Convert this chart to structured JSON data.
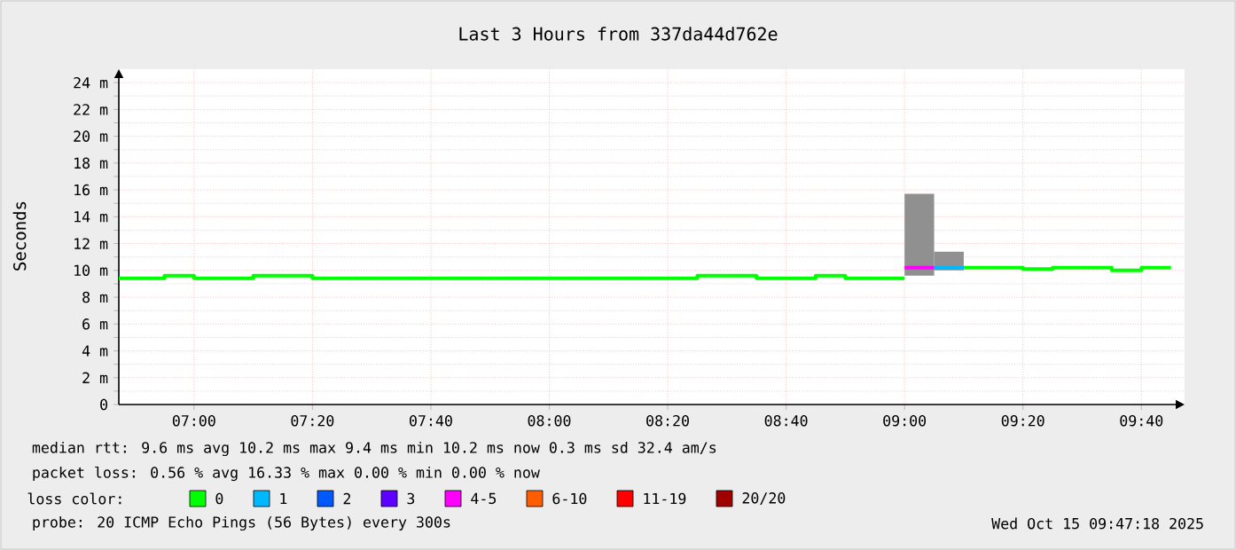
{
  "chart_data": {
    "type": "step",
    "title": "Last 3 Hours from 337da44d762e",
    "ylabel": "Seconds",
    "xlim": [
      6.7883,
      9.7883
    ],
    "ylim": [
      0,
      25
    ],
    "xticks": [
      {
        "value": 7.0,
        "label": "07:00"
      },
      {
        "value": 7.3333,
        "label": "07:20"
      },
      {
        "value": 7.6667,
        "label": "07:40"
      },
      {
        "value": 8.0,
        "label": "08:00"
      },
      {
        "value": 8.3333,
        "label": "08:20"
      },
      {
        "value": 8.6667,
        "label": "08:40"
      },
      {
        "value": 9.0,
        "label": "09:00"
      },
      {
        "value": 9.3333,
        "label": "09:20"
      },
      {
        "value": 9.6667,
        "label": "09:40"
      }
    ],
    "yticks": [
      0,
      {
        "value": 2,
        "label": "2 m"
      },
      {
        "value": 4,
        "label": "4 m"
      },
      {
        "value": 6,
        "label": "6 m"
      },
      {
        "value": 8,
        "label": "8 m"
      },
      {
        "value": 10,
        "label": "10 m"
      },
      {
        "value": 12,
        "label": "12 m"
      },
      {
        "value": 14,
        "label": "14 m"
      },
      {
        "value": 16,
        "label": "16 m"
      },
      {
        "value": 18,
        "label": "18 m"
      },
      {
        "value": 20,
        "label": "20 m"
      },
      {
        "value": 22,
        "label": "22 m"
      },
      {
        "value": 24,
        "label": "24 m"
      }
    ],
    "grid": true,
    "legend": "bottom",
    "legend_title": "loss color:",
    "series": [
      {
        "type": "bar",
        "color": "#909090",
        "x": [
          9.0417,
          9.125
        ],
        "base": [
          9.6,
          10.0
        ],
        "values": [
          6.1,
          1.4
        ]
      },
      {
        "name": "0",
        "color": "#00ff00",
        "x": [
          6.7883,
          6.9167,
          7.0,
          7.1667,
          7.3333,
          8.4167,
          8.5833,
          8.75,
          8.8333,
          9.0,
          9.0833,
          9.1667,
          9.3333,
          9.4167,
          9.5833,
          9.6667,
          9.75
        ],
        "values": [
          9.4,
          9.6,
          9.4,
          9.6,
          9.4,
          9.6,
          9.4,
          9.6,
          9.4,
          9.4,
          null,
          10.2,
          10.1,
          10.2,
          10.0,
          10.2,
          10.2
        ]
      },
      {
        "name": "1",
        "color": "#00b8ff",
        "x": [
          9.0833,
          9.1667
        ],
        "values": [
          10.2,
          10.2
        ]
      },
      {
        "name": "2",
        "color": "#0059ff"
      },
      {
        "name": "3",
        "color": "#5e00ff"
      },
      {
        "name": "4-5",
        "color": "#ff00ff",
        "x": [
          9.0,
          9.0833
        ],
        "values": [
          10.2,
          10.2
        ]
      },
      {
        "name": "6-10",
        "color": "#ff5e00"
      },
      {
        "name": "11-19",
        "color": "#ff0000"
      },
      {
        "name": "20/20",
        "color": "#a10000"
      }
    ],
    "annotations": [
      "median rtt:  9.6 ms avg  10.2 ms max  9.4 ms min  10.2 ms now  0.3 ms sd  32.4   am/s",
      "packet loss: 0.56 % avg  16.33 % max  0.00 % min  0.00 % now",
      "probe:      20 ICMP Echo Pings (56 Bytes) every 300s",
      "Wed Oct 15 09:47:18 2025"
    ]
  }
}
